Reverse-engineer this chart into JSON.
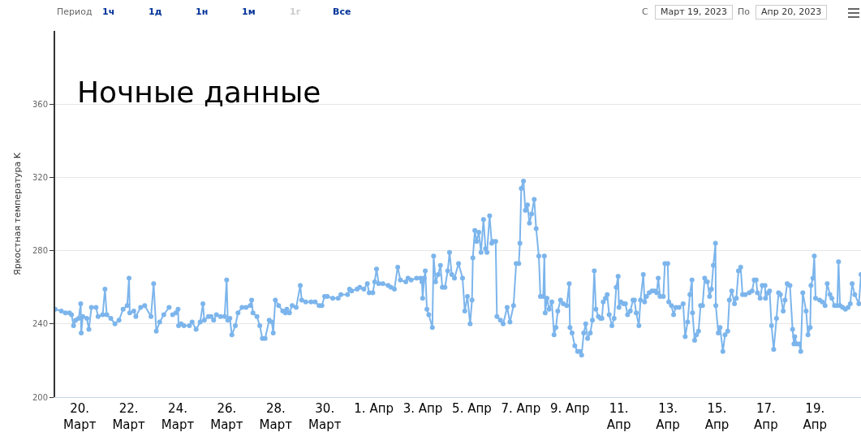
{
  "chart_data": {
    "type": "line",
    "title": "Ночные данные",
    "ylabel": "Яркостная температура K",
    "annotations": [
      "Период",
      "1ч",
      "1д",
      "1н",
      "1м",
      "1г",
      "Все",
      "С",
      "Март 19, 2023",
      "По",
      "Апр 20, 2023"
    ],
    "xlim": [
      "2023-03-19T00:00",
      "2023-04-20T21:05"
    ],
    "xticks": [
      {
        "value": "2023-03-20",
        "label": "20.\nМарт"
      },
      {
        "value": "2023-03-22",
        "label": "22.\nМарт"
      },
      {
        "value": "2023-03-24",
        "label": "24.\nМарт"
      },
      {
        "value": "2023-03-26",
        "label": "26.\nМарт"
      },
      {
        "value": "2023-03-28",
        "label": "28.\nМарт"
      },
      {
        "value": "2023-03-30",
        "label": "30.\nМарт"
      },
      {
        "value": "2023-04-01",
        "label": "1. Апр"
      },
      {
        "value": "2023-04-03",
        "label": "3. Апр"
      },
      {
        "value": "2023-04-05",
        "label": "5. Апр"
      },
      {
        "value": "2023-04-07",
        "label": "7. Апр"
      },
      {
        "value": "2023-04-09",
        "label": "9. Апр"
      },
      {
        "value": "2023-04-11",
        "label": "11.\nАпр"
      },
      {
        "value": "2023-04-13",
        "label": "13.\nАпр"
      },
      {
        "value": "2023-04-15",
        "label": "15.\nАпр"
      },
      {
        "value": "2023-04-17",
        "label": "17.\nАпр"
      },
      {
        "value": "2023-04-19",
        "label": "19.\nАпр"
      }
    ],
    "ylim": [
      200,
      400
    ],
    "yticks": [
      200,
      240,
      280,
      320,
      360
    ],
    "grid": "y",
    "marker": "circle",
    "line_style": "solid",
    "series": [
      {
        "color": "#7cb5ec",
        "x": [
          "2023-03-19T00:00",
          "2023-03-19T06:00",
          "2023-03-19T10:00",
          "2023-03-19T14:00",
          "2023-03-19T16:00",
          "2023-03-19T18:00",
          "2023-03-19T20:00",
          "2023-03-19T23:00",
          "2023-03-20T01:00",
          "2023-03-20T01:30",
          "2023-03-20T03:00",
          "2023-03-20T07:00",
          "2023-03-20T09:00",
          "2023-03-20T11:30",
          "2023-03-20T16:00",
          "2023-03-20T18:00",
          "2023-03-20T22:30",
          "2023-03-21T00:45",
          "2023-03-21T02:30",
          "2023-03-21T06:30",
          "2023-03-21T10:30",
          "2023-03-21T14:30",
          "2023-03-21T18:30",
          "2023-03-21T22:30",
          "2023-03-22T00:20",
          "2023-03-22T01:00",
          "2023-03-22T05:00",
          "2023-03-22T07:00",
          "2023-03-22T11:40",
          "2023-03-22T15:40",
          "2023-03-22T21:50",
          "2023-03-23T00:25",
          "2023-03-23T03:00",
          "2023-03-23T06:20",
          "2023-03-23T10:20",
          "2023-03-23T15:30",
          "2023-03-23T18:00",
          "2023-03-23T19:00",
          "2023-03-23T22:10",
          "2023-03-24T00:20",
          "2023-03-24T00:50",
          "2023-03-24T03:25",
          "2023-03-24T06:05",
          "2023-03-24T11:25",
          "2023-03-24T14:05",
          "2023-03-24T18:00",
          "2023-03-24T22:00",
          "2023-03-25T00:40",
          "2023-03-25T02:00",
          "2023-03-25T06:00",
          "2023-03-25T08:40",
          "2023-03-25T11:10",
          "2023-03-25T13:55",
          "2023-03-25T17:55",
          "2023-03-25T21:55",
          "2023-03-25T23:55",
          "2023-03-26T01:00",
          "2023-03-26T03:05",
          "2023-03-26T05:00",
          "2023-03-26T08:25",
          "2023-03-26T11:00",
          "2023-03-26T15:00",
          "2023-03-26T19:00",
          "2023-03-26T23:00",
          "2023-03-27T00:20",
          "2023-03-27T01:40",
          "2023-03-27T05:35",
          "2023-03-27T08:20",
          "2023-03-27T10:55",
          "2023-03-27T13:35",
          "2023-03-27T17:35",
          "2023-03-27T20:10",
          "2023-03-27T21:30",
          "2023-03-27T23:35",
          "2023-03-28T02:50",
          "2023-03-28T06:50",
          "2023-03-28T09:30",
          "2023-03-28T10:50",
          "2023-03-28T13:25",
          "2023-03-28T16:05",
          "2023-03-28T20:00",
          "2023-03-29T00:00",
          "2023-03-29T01:25",
          "2023-03-29T05:20",
          "2023-03-29T10:35",
          "2023-03-29T14:35",
          "2023-03-29T18:30",
          "2023-03-29T21:10",
          "2023-03-29T23:50",
          "2023-03-30T02:30",
          "2023-03-30T07:50",
          "2023-03-30T13:05",
          "2023-03-30T15:45",
          "2023-03-30T22:20",
          "2023-03-31T00:15",
          "2023-03-31T02:20",
          "2023-03-31T07:35",
          "2023-03-31T10:15",
          "2023-03-31T14:15",
          "2023-03-31T17:40",
          "2023-03-31T19:30",
          "2023-03-31T23:00",
          "2023-04-01T00:55",
          "2023-04-01T02:40",
          "2023-04-01T04:50",
          "2023-04-01T08:50",
          "2023-04-01T14:05",
          "2023-04-01T16:50",
          "2023-04-01T20:10",
          "2023-04-01T23:25",
          "2023-04-02T02:00",
          "2023-04-02T07:20",
          "2023-04-02T09:30",
          "2023-04-02T12:35",
          "2023-04-02T17:55",
          "2023-04-02T21:55",
          "2023-04-02T23:10",
          "2023-04-02T23:50",
          "2023-04-03T01:25",
          "2023-04-03T02:25",
          "2023-04-03T04:00",
          "2023-04-03T05:50",
          "2023-04-03T09:20",
          "2023-04-03T10:35",
          "2023-04-03T12:30",
          "2023-04-03T15:05",
          "2023-04-03T17:15",
          "2023-04-03T19:05",
          "2023-04-03T21:40",
          "2023-04-04T00:25",
          "2023-04-04T02:10",
          "2023-04-04T04:20",
          "2023-04-04T07:00",
          "2023-04-04T11:00",
          "2023-04-04T14:55",
          "2023-04-04T17:05",
          "2023-04-04T19:40",
          "2023-04-04T22:20",
          "2023-04-05T00:10",
          "2023-04-05T01:00",
          "2023-04-05T02:55",
          "2023-04-05T04:40",
          "2023-04-05T06:50",
          "2023-04-05T09:00",
          "2023-04-05T11:25",
          "2023-04-05T13:25",
          "2023-04-05T14:50",
          "2023-04-05T17:25",
          "2023-04-05T19:30",
          "2023-04-05T20:35",
          "2023-04-05T23:20",
          "2023-04-06T00:35",
          "2023-04-06T04:00",
          "2023-04-06T06:40",
          "2023-04-06T10:35",
          "2023-04-06T13:20",
          "2023-04-06T16:50",
          "2023-04-06T19:25",
          "2023-04-06T22:00",
          "2023-04-06T23:05",
          "2023-04-07T00:25",
          "2023-04-07T02:35",
          "2023-04-07T04:25",
          "2023-04-07T06:30",
          "2023-04-07T08:25",
          "2023-04-07T10:30",
          "2023-04-07T13:05",
          "2023-04-07T15:00",
          "2023-04-07T17:35",
          "2023-04-07T19:10",
          "2023-04-07T21:55",
          "2023-04-07T23:00",
          "2023-04-07T23:50",
          "2023-04-08T01:35",
          "2023-04-08T03:40",
          "2023-04-08T06:20",
          "2023-04-08T08:30",
          "2023-04-08T10:20",
          "2023-04-08T12:10",
          "2023-04-08T14:50",
          "2023-04-08T17:30",
          "2023-04-08T20:55",
          "2023-04-08T23:20",
          "2023-04-09T00:05",
          "2023-04-09T02:10",
          "2023-04-09T04:50",
          "2023-04-09T07:35",
          "2023-04-09T10:10",
          "2023-04-09T11:30",
          "2023-04-09T13:35",
          "2023-04-09T15:30",
          "2023-04-09T17:20",
          "2023-04-09T20:00",
          "2023-04-09T22:05",
          "2023-04-09T23:55",
          "2023-04-10T01:30",
          "2023-04-10T03:55",
          "2023-04-10T06:00",
          "2023-04-10T07:25",
          "2023-04-10T08:40",
          "2023-04-10T10:50",
          "2023-04-10T12:35",
          "2023-04-10T14:30",
          "2023-04-10T17:10",
          "2023-04-10T19:20",
          "2023-04-10T21:25",
          "2023-04-10T23:15",
          "2023-04-11T00:05",
          "2023-04-11T01:55",
          "2023-04-11T04:30",
          "2023-04-11T06:25",
          "2023-04-11T08:30",
          "2023-04-11T11:10",
          "2023-04-11T13:50",
          "2023-04-11T15:10",
          "2023-04-11T17:00",
          "2023-04-11T19:35",
          "2023-04-11T21:10",
          "2023-04-11T23:55",
          "2023-04-12T01:10",
          "2023-04-12T03:05",
          "2023-04-12T05:40",
          "2023-04-12T08:20",
          "2023-04-12T11:00",
          "2023-04-12T13:05",
          "2023-04-12T14:30",
          "2023-04-12T16:20",
          "2023-04-12T19:30",
          "2023-04-12T21:05",
          "2023-04-12T23:50",
          "2023-04-13T00:50",
          "2023-04-13T03:25",
          "2023-04-13T05:35",
          "2023-04-13T07:40",
          "2023-04-13T10:55",
          "2023-04-13T14:55",
          "2023-04-13T16:55",
          "2023-04-13T19:20",
          "2023-04-13T21:30",
          "2023-04-13T23:35",
          "2023-04-14T00:05",
          "2023-04-14T02:10",
          "2023-04-14T04:00",
          "2023-04-14T06:00",
          "2023-04-14T08:00",
          "2023-04-14T09:55",
          "2023-04-14T12:00",
          "2023-04-14T14:40",
          "2023-04-14T16:50",
          "2023-04-14T18:40",
          "2023-04-14T20:30",
          "2023-04-14T22:35",
          "2023-04-14T22:55",
          "2023-04-15T01:20",
          "2023-04-15T03:05",
          "2023-04-15T05:50",
          "2023-04-15T07:55",
          "2023-04-15T10:35",
          "2023-04-15T12:10",
          "2023-04-15T14:30",
          "2023-04-15T17:10",
          "2023-04-15T19:00",
          "2023-04-15T21:05",
          "2023-04-15T23:15",
          "2023-04-16T01:05",
          "2023-04-16T03:45",
          "2023-04-16T07:40",
          "2023-04-16T10:25",
          "2023-04-16T12:30",
          "2023-04-16T14:25",
          "2023-04-16T15:40",
          "2023-04-16T18:20",
          "2023-04-16T20:25",
          "2023-04-16T23:05",
          "2023-04-16T23:35",
          "2023-04-17T02:20",
          "2023-04-17T03:35",
          "2023-04-17T05:30",
          "2023-04-17T07:35",
          "2023-04-17T10:20",
          "2023-04-17T12:20",
          "2023-04-17T14:10",
          "2023-04-17T16:55",
          "2023-04-17T18:40",
          "2023-04-17T20:50",
          "2023-04-17T23:30",
          "2023-04-18T02:05",
          "2023-04-18T03:25",
          "2023-04-18T04:10",
          "2023-04-18T06:05",
          "2023-04-18T08:40",
          "2023-04-18T10:05",
          "2023-04-18T12:05",
          "2023-04-18T15:20",
          "2023-04-18T17:10",
          "2023-04-18T19:20",
          "2023-04-18T20:05",
          "2023-04-18T22:00",
          "2023-04-18T23:20",
          "2023-04-19T00:35",
          "2023-04-19T04:35",
          "2023-04-19T07:10",
          "2023-04-19T09:55",
          "2023-04-19T12:00",
          "2023-04-19T14:40",
          "2023-04-19T16:30",
          "2023-04-19T19:10",
          "2023-04-19T21:50",
          "2023-04-19T23:05",
          "2023-04-20T00:30",
          "2023-04-20T03:05",
          "2023-04-20T05:50",
          "2023-04-20T08:25",
          "2023-04-20T10:35",
          "2023-04-20T12:25",
          "2023-04-20T15:00",
          "2023-04-20T19:00",
          "2023-04-20T21:05"
        ],
        "values": [
          248,
          247,
          246,
          246,
          245,
          239,
          242,
          243,
          251,
          235,
          244,
          243,
          237,
          249,
          249,
          244,
          245,
          259,
          245,
          243,
          240,
          242,
          248,
          250,
          265,
          246,
          247,
          244,
          249,
          250,
          244,
          262,
          236,
          241,
          245,
          249,
          null,
          245,
          246,
          248,
          239,
          240,
          239,
          239,
          241,
          237,
          241,
          251,
          242,
          244,
          244,
          242,
          245,
          244,
          244,
          264,
          242,
          243,
          234,
          239,
          246,
          249,
          249,
          250,
          253,
          246,
          244,
          239,
          232,
          232,
          242,
          241,
          235,
          253,
          250,
          247,
          246,
          248,
          246,
          250,
          249,
          261,
          253,
          252,
          252,
          252,
          250,
          250,
          255,
          255,
          254,
          254,
          256,
          256,
          259,
          258,
          259,
          260,
          259,
          262,
          257,
          257,
          263,
          270,
          262,
          262,
          261,
          260,
          259,
          271,
          264,
          263,
          265,
          264,
          265,
          265,
          263,
          254,
          265,
          269,
          248,
          245,
          238,
          277,
          263,
          267,
          272,
          260,
          260,
          269,
          279,
          267,
          265,
          273,
          265,
          247,
          255,
          240,
          253,
          276,
          291,
          285,
          290,
          279,
          297,
          281,
          279,
          299,
          284,
          285,
          285,
          244,
          242,
          240,
          249,
          241,
          250,
          273,
          273,
          284,
          314,
          318,
          302,
          305,
          295,
          300,
          308,
          292,
          277,
          255,
          255,
          277,
          246,
          254,
          248,
          252,
          234,
          238,
          247,
          253,
          251,
          250,
          262,
          238,
          235,
          228,
          225,
          225,
          223,
          235,
          240,
          232,
          235,
          242,
          269,
          248,
          244,
          243,
          243,
          252,
          254,
          256,
          245,
          239,
          243,
          260,
          266,
          249,
          252,
          251,
          251,
          245,
          247,
          253,
          253,
          246,
          239,
          253,
          267,
          252,
          255,
          257,
          258,
          258,
          257,
          265,
          255,
          255,
          273,
          273,
          252,
          250,
          245,
          249,
          249,
          251,
          233,
          241,
          256,
          264,
          246,
          231,
          234,
          236,
          250,
          250,
          265,
          263,
          255,
          259,
          272,
          284,
          250,
          235,
          238,
          225,
          234,
          236,
          253,
          258,
          251,
          254,
          269,
          271,
          256,
          256,
          257,
          258,
          264,
          264,
          257,
          254,
          261,
          261,
          254,
          257,
          258,
          239,
          226,
          243,
          257,
          256,
          247,
          253,
          262,
          261,
          237,
          229,
          233,
          229,
          229,
          225,
          257,
          247,
          234,
          238,
          261,
          265,
          277,
          254,
          253,
          252,
          250,
          262,
          256,
          254,
          250,
          250,
          274,
          250,
          249,
          248,
          249,
          251,
          262,
          256,
          251,
          267
        ]
      }
    ]
  }
}
